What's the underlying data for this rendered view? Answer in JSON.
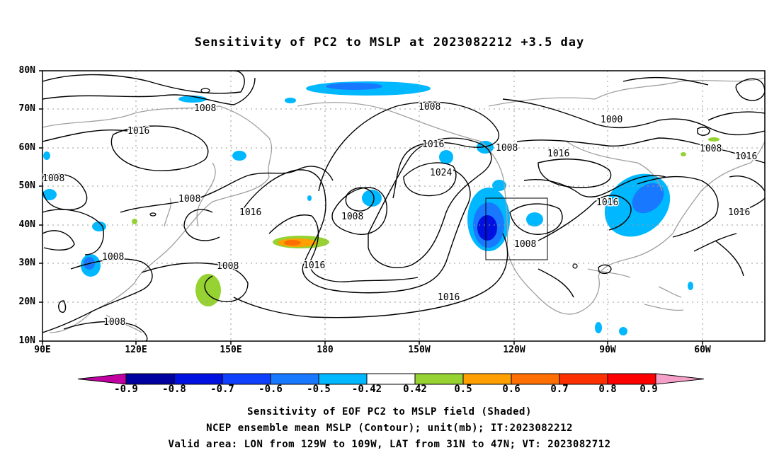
{
  "title": "Sensitivity of PC2 to MSLP at 2023082212 +3.5 day",
  "map": {
    "lat_labels": [
      "80N",
      "70N",
      "60N",
      "50N",
      "40N",
      "30N",
      "20N",
      "10N"
    ],
    "lon_labels": [
      "90E",
      "120E",
      "150E",
      "180",
      "150W",
      "120W",
      "90W",
      "60W"
    ],
    "valid_area": {
      "lon": [
        -129,
        -109
      ],
      "lat": [
        31,
        47
      ]
    },
    "contour_labels": [
      "1008",
      "1016",
      "1008",
      "1008",
      "1008",
      "1016",
      "1008",
      "1008",
      "1016",
      "1008",
      "1016",
      "1024",
      "1008",
      "1016",
      "1016",
      "1000",
      "1008",
      "1016",
      "1016",
      "1008",
      "1016",
      "1008"
    ]
  },
  "colorbar": {
    "labels": [
      "-0.9",
      "-0.8",
      "-0.7",
      "-0.6",
      "-0.5",
      "-0.42",
      "0.42",
      "0.5",
      "0.6",
      "0.7",
      "0.8",
      "0.9"
    ],
    "colors": [
      "#c000a0",
      "#0000a0",
      "#0010e0",
      "#1040ff",
      "#1878ff",
      "#00b8ff",
      "#ffffff",
      "#96d232",
      "#ffa000",
      "#ff6e00",
      "#ff3000",
      "#ff0000",
      "#f5a0c8"
    ]
  },
  "captions": {
    "line1": "Sensitivity of EOF PC2 to MSLP field (Shaded)",
    "line2": "NCEP ensemble mean MSLP (Contour); unit(mb); IT:2023082212",
    "line3": "Valid area: LON from 129W to 109W, LAT from 31N to 47N; VT: 2023082712"
  }
}
